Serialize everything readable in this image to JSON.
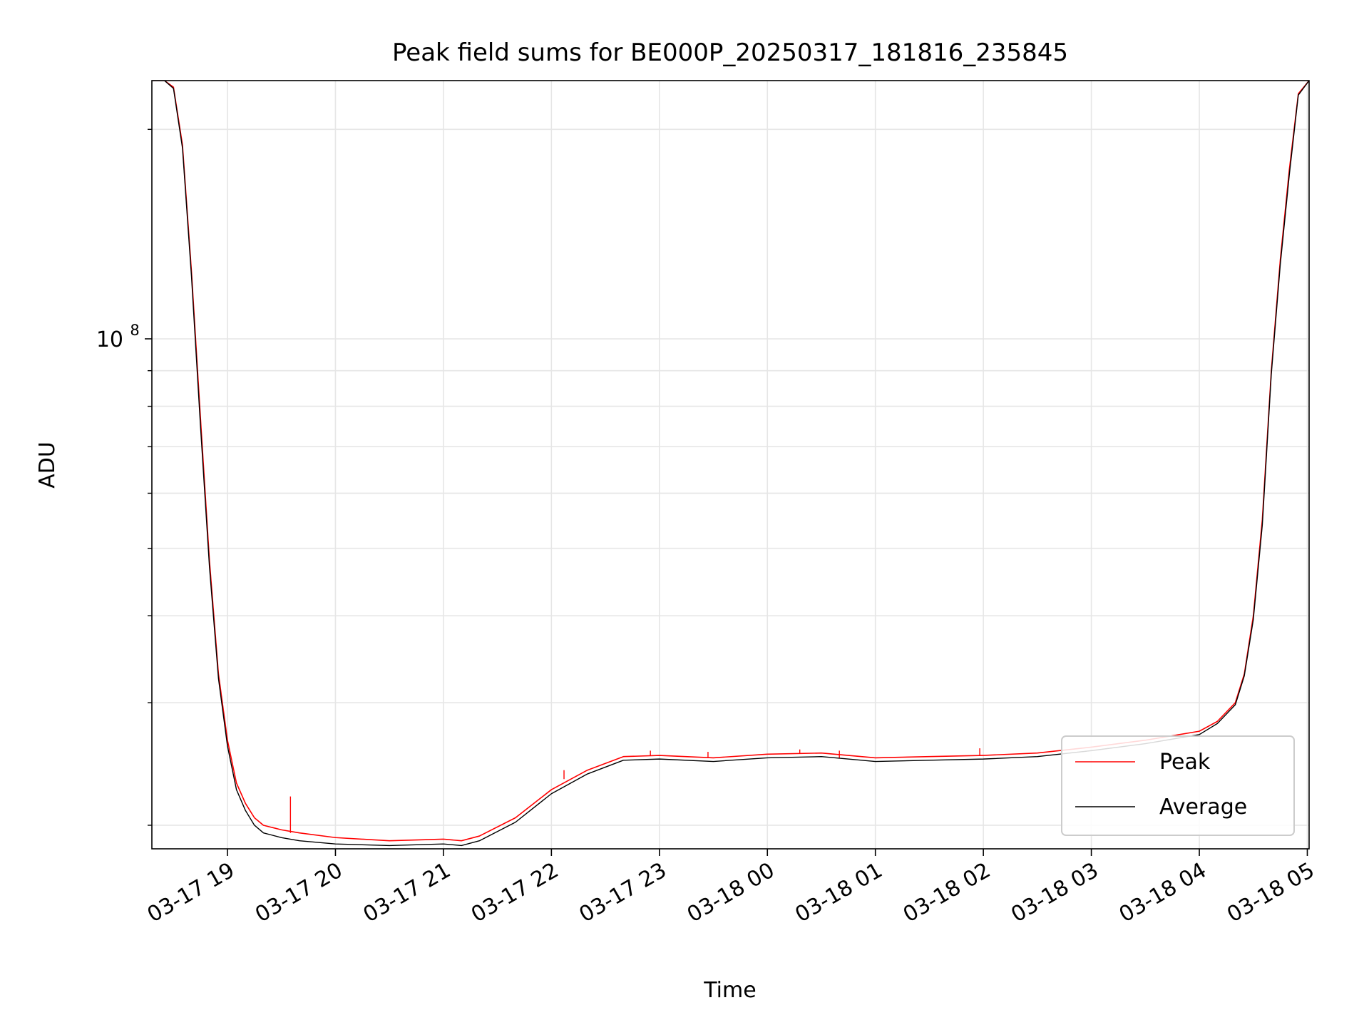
{
  "chart_data": {
    "type": "line",
    "title": "Peak field sums for BE000P_20250317_181816_235845",
    "xlabel": "Time",
    "ylabel": "ADU",
    "y_scale": "log",
    "ylim": [
      18500000,
      235000000
    ],
    "xlim": [
      "2025-03-17 18:18",
      "2025-03-18 05:01"
    ],
    "x_ticks": [
      "03-17 19",
      "03-17 20",
      "03-17 21",
      "03-17 22",
      "03-17 23",
      "03-18 00",
      "03-18 01",
      "03-18 02",
      "03-18 03",
      "03-18 04",
      "03-18 05"
    ],
    "x_tick_times": [
      "2025-03-17 19:00",
      "2025-03-17 20:00",
      "2025-03-17 21:00",
      "2025-03-17 22:00",
      "2025-03-17 23:00",
      "2025-03-18 00:00",
      "2025-03-18 01:00",
      "2025-03-18 02:00",
      "2025-03-18 03:00",
      "2025-03-18 04:00",
      "2025-03-18 05:00"
    ],
    "y_major_ticks": [
      {
        "value": 100000000,
        "base": "10",
        "exp": "8"
      }
    ],
    "y_minor_ticks": [
      20000000,
      30000000,
      40000000,
      50000000,
      60000000,
      70000000,
      80000000,
      90000000,
      200000000
    ],
    "grid": true,
    "legend_position": "bottom-right",
    "series": [
      {
        "name": "Peak",
        "color": "#ff0000",
        "x": [
          "2025-03-17 18:18",
          "2025-03-17 18:25",
          "2025-03-17 18:30",
          "2025-03-17 18:35",
          "2025-03-17 18:40",
          "2025-03-17 18:45",
          "2025-03-17 18:50",
          "2025-03-17 18:55",
          "2025-03-17 19:00",
          "2025-03-17 19:05",
          "2025-03-17 19:10",
          "2025-03-17 19:15",
          "2025-03-17 19:20",
          "2025-03-17 19:30",
          "2025-03-17 19:40",
          "2025-03-17 20:00",
          "2025-03-17 20:30",
          "2025-03-17 21:00",
          "2025-03-17 21:10",
          "2025-03-17 21:20",
          "2025-03-17 21:40",
          "2025-03-17 22:00",
          "2025-03-17 22:20",
          "2025-03-17 22:40",
          "2025-03-17 23:00",
          "2025-03-17 23:30",
          "2025-03-18 00:00",
          "2025-03-18 00:30",
          "2025-03-18 01:00",
          "2025-03-18 01:30",
          "2025-03-18 02:00",
          "2025-03-18 02:30",
          "2025-03-18 03:00",
          "2025-03-18 03:30",
          "2025-03-18 04:00",
          "2025-03-18 04:10",
          "2025-03-18 04:20",
          "2025-03-18 04:25",
          "2025-03-18 04:30",
          "2025-03-18 04:35",
          "2025-03-18 04:40",
          "2025-03-18 04:45",
          "2025-03-18 04:50",
          "2025-03-18 04:55",
          "2025-03-18 05:01"
        ],
        "y": [
          235000000,
          235000000,
          230000000,
          190000000,
          125000000,
          77000000,
          48000000,
          33000000,
          26500000,
          23000000,
          21500000,
          20500000,
          20000000,
          19700000,
          19500000,
          19200000,
          19000000,
          19100000,
          19000000,
          19300000,
          20500000,
          22500000,
          24000000,
          25100000,
          25200000,
          25000000,
          25300000,
          25400000,
          25000000,
          25100000,
          25200000,
          25400000,
          25900000,
          26500000,
          27300000,
          28200000,
          30000000,
          33000000,
          40000000,
          55000000,
          90000000,
          130000000,
          175000000,
          225000000,
          235000000
        ],
        "spikes": [
          {
            "x": "2025-03-17 19:35",
            "y": 22000000
          },
          {
            "x": "2025-03-17 22:07",
            "y": 23300000
          },
          {
            "x": "2025-03-17 22:55",
            "y": 25600000
          },
          {
            "x": "2025-03-17 23:27",
            "y": 25500000
          },
          {
            "x": "2025-03-18 00:18",
            "y": 25700000
          },
          {
            "x": "2025-03-18 00:40",
            "y": 25600000
          },
          {
            "x": "2025-03-18 01:58",
            "y": 25800000
          }
        ]
      },
      {
        "name": "Average",
        "color": "#000000",
        "x": [
          "2025-03-17 18:18",
          "2025-03-17 18:25",
          "2025-03-17 18:30",
          "2025-03-17 18:35",
          "2025-03-17 18:40",
          "2025-03-17 18:45",
          "2025-03-17 18:50",
          "2025-03-17 18:55",
          "2025-03-17 19:00",
          "2025-03-17 19:05",
          "2025-03-17 19:10",
          "2025-03-17 19:15",
          "2025-03-17 19:20",
          "2025-03-17 19:30",
          "2025-03-17 19:40",
          "2025-03-17 20:00",
          "2025-03-17 20:30",
          "2025-03-17 21:00",
          "2025-03-17 21:10",
          "2025-03-17 21:20",
          "2025-03-17 21:40",
          "2025-03-17 22:00",
          "2025-03-17 22:20",
          "2025-03-17 22:40",
          "2025-03-17 23:00",
          "2025-03-17 23:30",
          "2025-03-18 00:00",
          "2025-03-18 00:30",
          "2025-03-18 01:00",
          "2025-03-18 01:30",
          "2025-03-18 02:00",
          "2025-03-18 02:30",
          "2025-03-18 03:00",
          "2025-03-18 03:30",
          "2025-03-18 04:00",
          "2025-03-18 04:10",
          "2025-03-18 04:20",
          "2025-03-18 04:25",
          "2025-03-18 04:30",
          "2025-03-18 04:35",
          "2025-03-18 04:40",
          "2025-03-18 04:45",
          "2025-03-18 04:50",
          "2025-03-18 04:55",
          "2025-03-18 05:01"
        ],
        "y": [
          235000000,
          235000000,
          229000000,
          188000000,
          123000000,
          75000000,
          47000000,
          32500000,
          26000000,
          22500000,
          21000000,
          20000000,
          19500000,
          19200000,
          19000000,
          18800000,
          18700000,
          18800000,
          18700000,
          19000000,
          20200000,
          22200000,
          23700000,
          24800000,
          24900000,
          24700000,
          25000000,
          25100000,
          24700000,
          24800000,
          24900000,
          25100000,
          25600000,
          26200000,
          27000000,
          28000000,
          29800000,
          32800000,
          39500000,
          54000000,
          89000000,
          128000000,
          172000000,
          224000000,
          235000000
        ]
      }
    ]
  }
}
